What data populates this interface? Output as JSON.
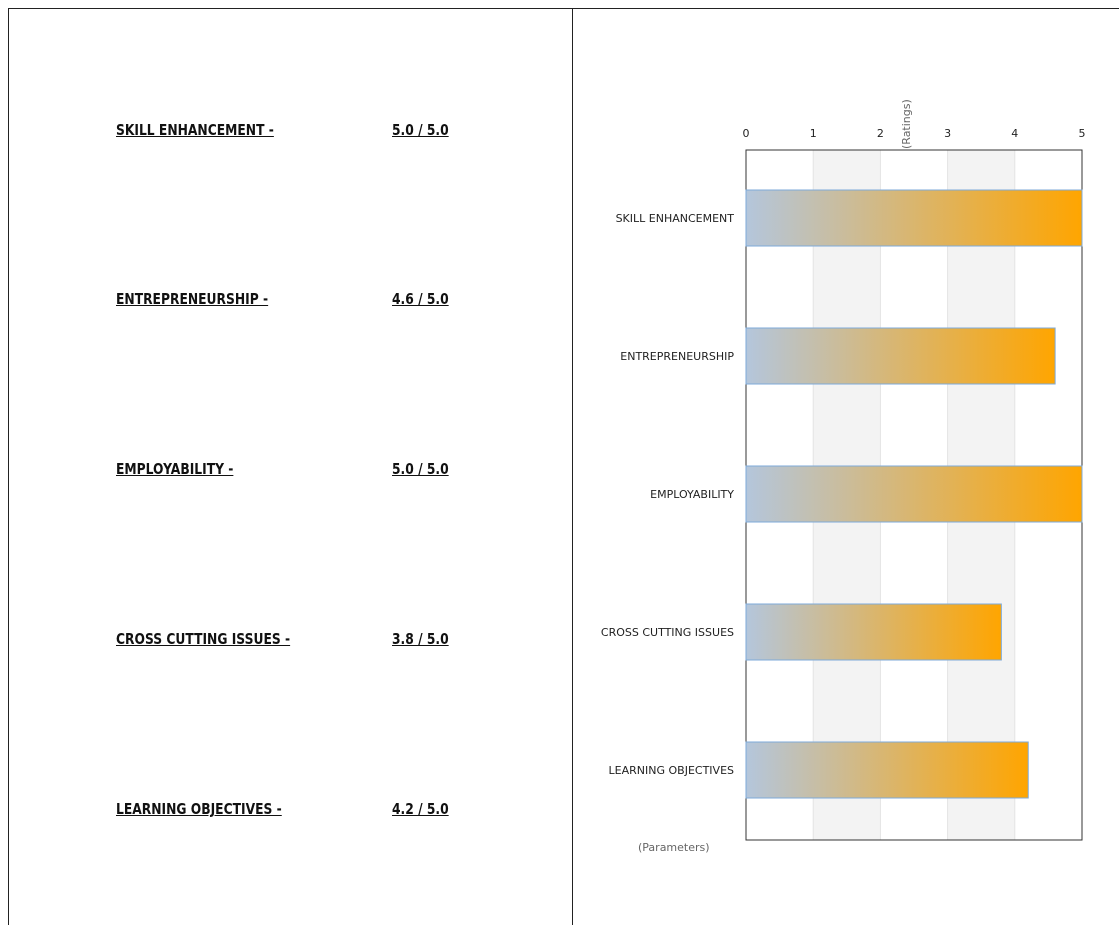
{
  "ratings": [
    {
      "label": "SKILL ENHANCEMENT -",
      "value": "5.0 / 5.0"
    },
    {
      "label": "ENTREPRENEURSHIP -",
      "value": "4.6 / 5.0"
    },
    {
      "label": "EMPLOYABILITY -",
      "value": "5.0 / 5.0"
    },
    {
      "label": "CROSS CUTTING ISSUES -",
      "value": "3.8 / 5.0"
    },
    {
      "label": "LEARNING OBJECTIVES -",
      "value": "4.2 / 5.0"
    }
  ],
  "chart_data": {
    "type": "bar",
    "orientation": "horizontal",
    "categories": [
      "SKILL ENHANCEMENT",
      "ENTREPRENEURSHIP",
      "EMPLOYABILITY",
      "CROSS CUTTING ISSUES",
      "LEARNING OBJECTIVES"
    ],
    "values": [
      5.0,
      4.6,
      5.0,
      3.8,
      4.2
    ],
    "xlabel": "(Ratings)",
    "ylabel": "(Parameters)",
    "xlim": [
      0,
      5
    ],
    "xticks": [
      0,
      1,
      2,
      3,
      4,
      5
    ],
    "x_axis_position": "top",
    "grid": "alternating vertical bands",
    "bar_gradient": [
      "#b4c6dc",
      "#ffa500"
    ],
    "bar_border_color": "#7eaad8"
  }
}
